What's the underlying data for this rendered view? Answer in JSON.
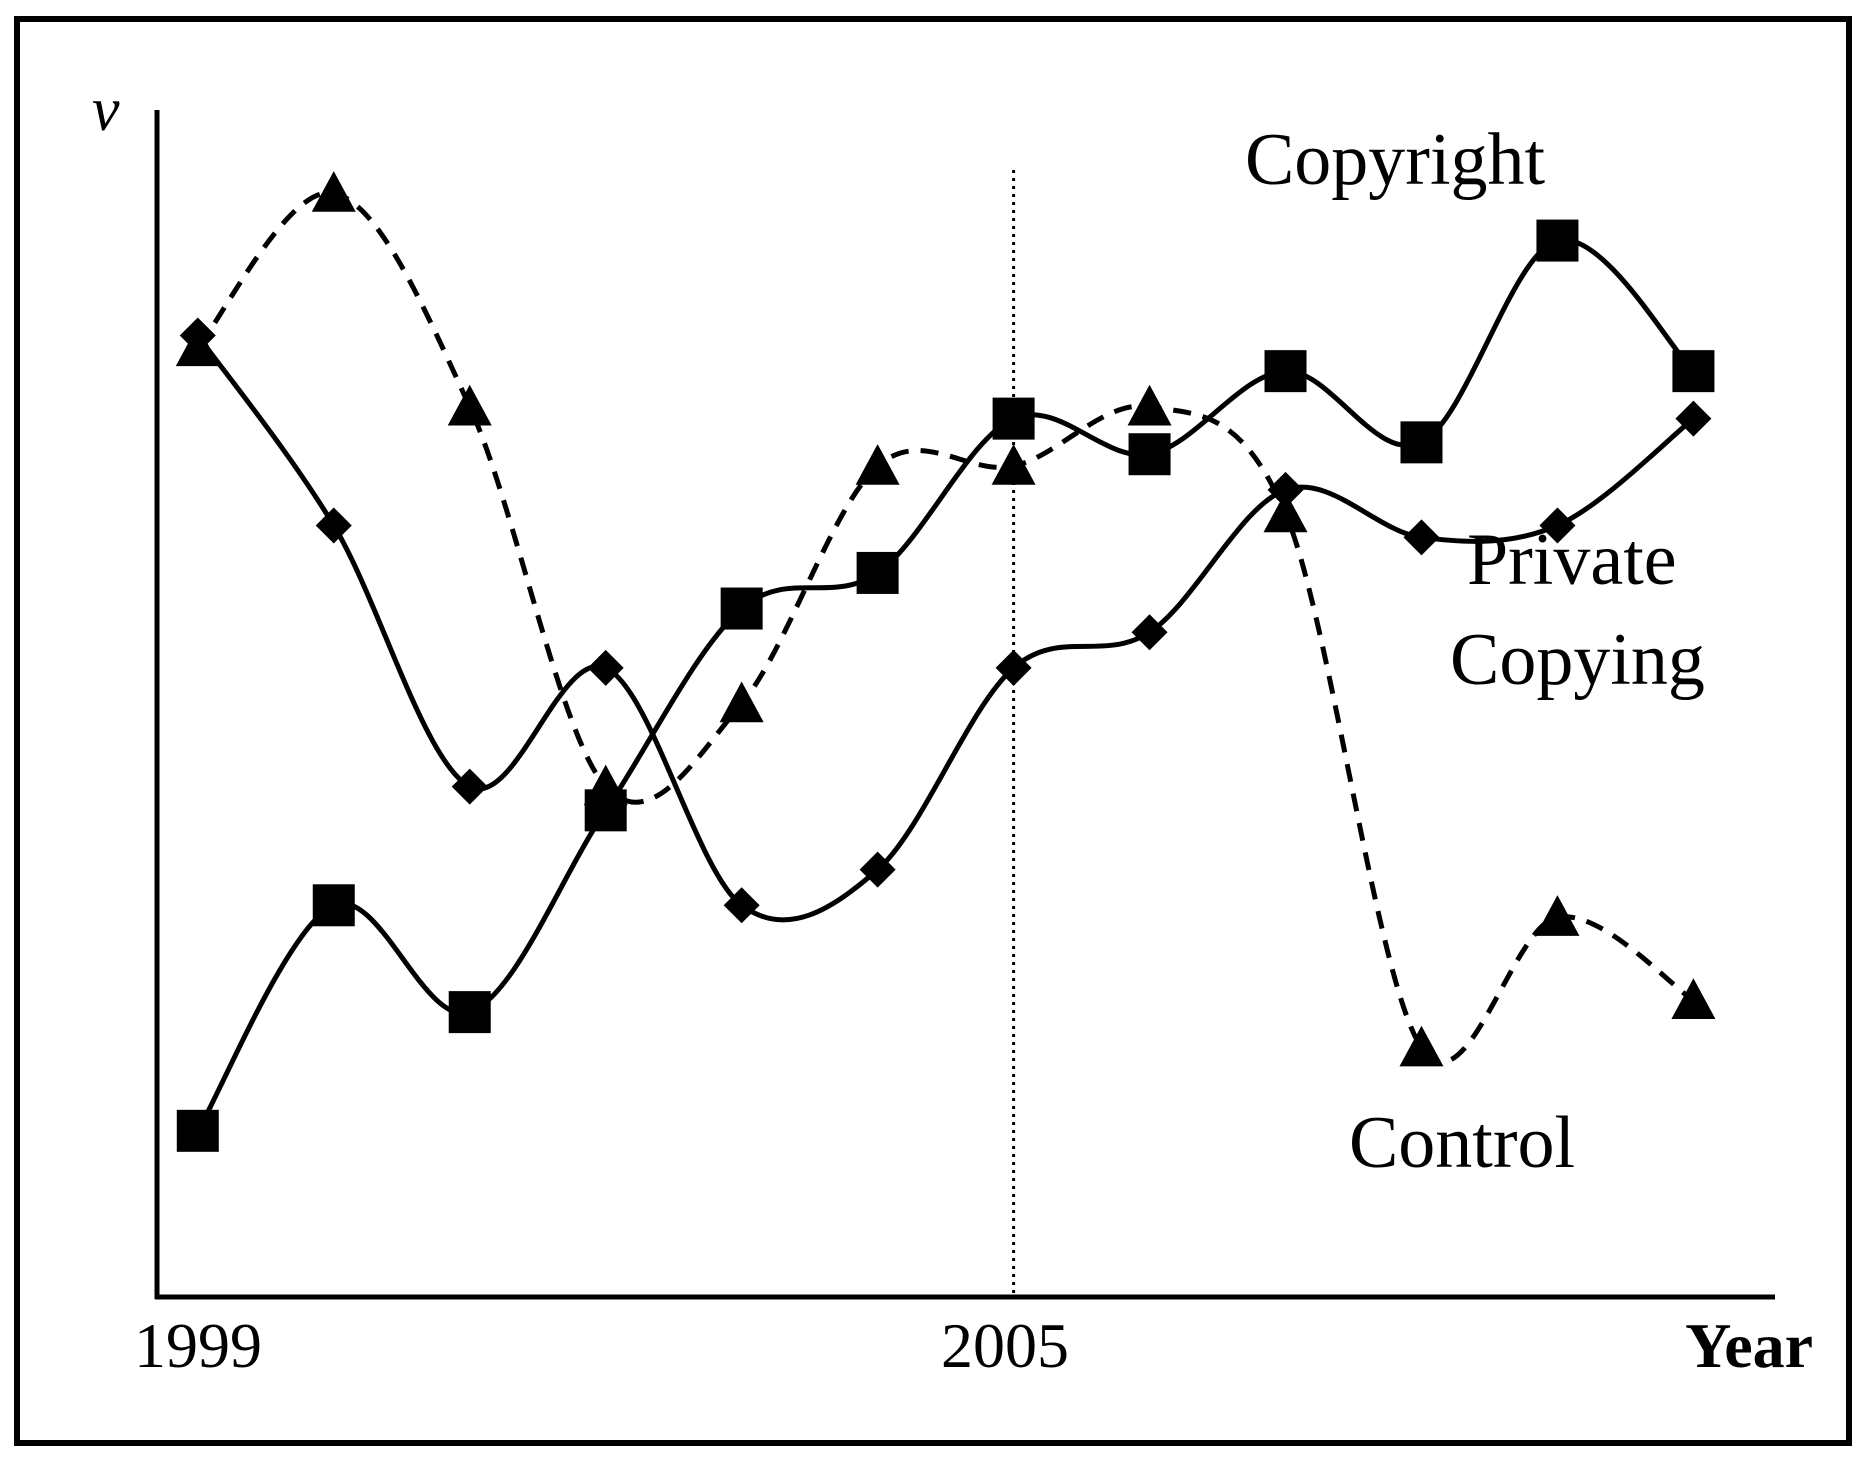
{
  "chart_data": {
    "type": "line",
    "y_axis_label": "v",
    "xlabel": "Year",
    "x_tick_labels": [
      "1999",
      "2005"
    ],
    "x": [
      1999,
      2000,
      2001,
      2002,
      2003,
      2004,
      2005,
      2006,
      2007,
      2008,
      2009,
      2010
    ],
    "ylim": [
      0,
      10
    ],
    "xlim": [
      1998.7,
      2010.6
    ],
    "reference_line_x": 2005,
    "series": [
      {
        "name": "Copyright",
        "marker": "square",
        "line_style": "solid",
        "values": [
          1.4,
          3.3,
          2.4,
          4.1,
          5.8,
          6.1,
          7.4,
          7.1,
          7.8,
          7.2,
          8.9,
          7.8
        ]
      },
      {
        "name": "Private Copying",
        "marker": "diamond",
        "line_style": "solid",
        "values": [
          8.1,
          6.5,
          4.3,
          5.3,
          3.3,
          3.6,
          5.3,
          5.6,
          6.8,
          6.4,
          6.5,
          7.4
        ]
      },
      {
        "name": "Control",
        "marker": "triangle",
        "line_style": "dashed",
        "values": [
          8.0,
          9.3,
          7.5,
          4.3,
          5.0,
          7.0,
          7.0,
          7.5,
          6.6,
          2.1,
          3.2,
          2.5
        ]
      }
    ],
    "grid": false,
    "legend": "inline labels"
  }
}
